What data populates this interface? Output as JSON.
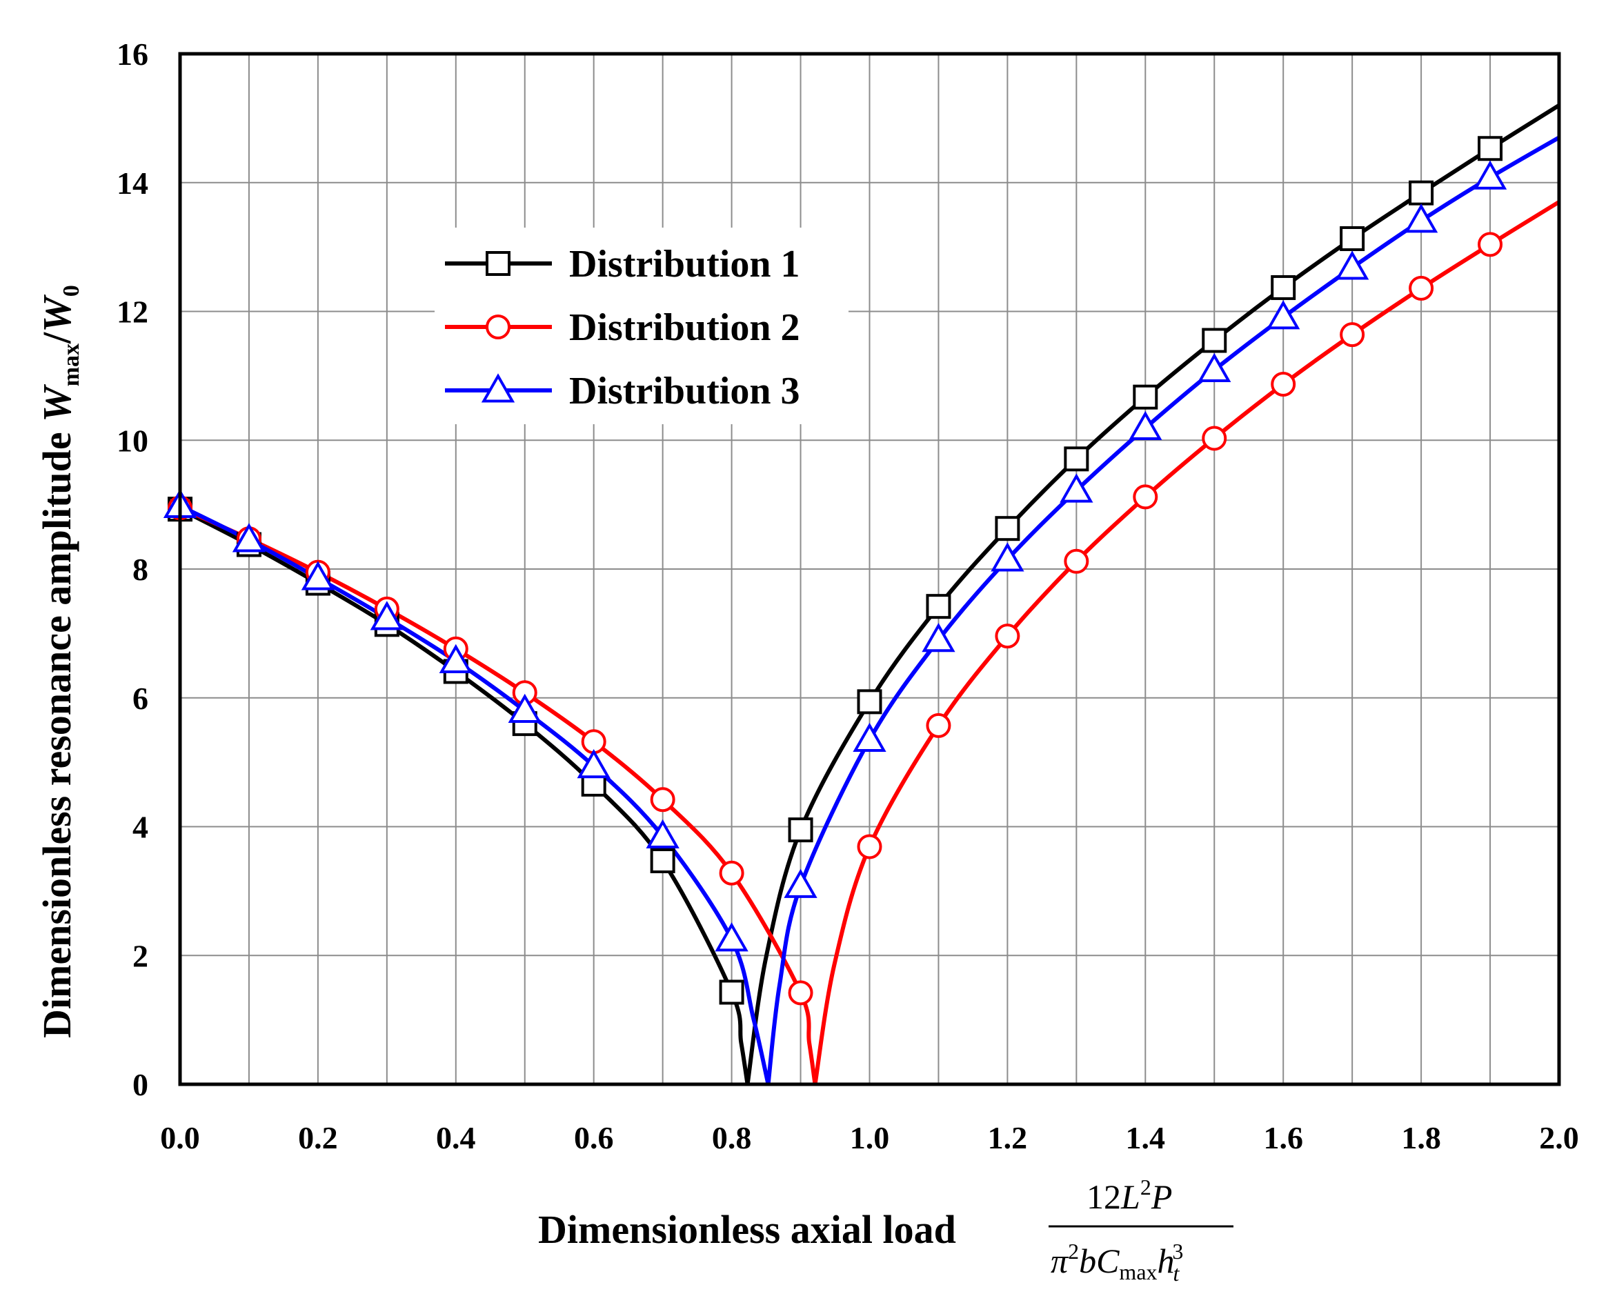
{
  "chart_data": {
    "type": "line",
    "title": "",
    "xlabel": "Dimensionless axial load",
    "xlabel_fraction": {
      "numerator": {
        "coef": "12",
        "L": "L",
        "L_exp": "2",
        "P": "P"
      },
      "denominator": {
        "pi": "π",
        "pi_exp": "2",
        "b": "b",
        "C": "C",
        "C_sub": "max",
        "h": "h",
        "h_sub": "t",
        "h_exp": "3"
      }
    },
    "ylabel": {
      "text": "Dimensionless resonance amplitude ",
      "W": "W",
      "W_sub": "max",
      "slash": "/",
      "W0": "W",
      "W0_sub": "0"
    },
    "xlim": [
      0,
      2.0
    ],
    "ylim": [
      0,
      16
    ],
    "x_ticks": [
      0.0,
      0.2,
      0.4,
      0.6,
      0.8,
      1.0,
      1.2,
      1.4,
      1.6,
      1.8,
      2.0
    ],
    "x_tick_labels": [
      "0.0",
      "0.2",
      "0.4",
      "0.6",
      "0.8",
      "1.0",
      "1.2",
      "1.4",
      "1.6",
      "1.8",
      "2.0"
    ],
    "y_ticks": [
      0,
      2,
      4,
      6,
      8,
      10,
      12,
      14,
      16
    ],
    "y_tick_labels": [
      "0",
      "2",
      "4",
      "6",
      "8",
      "10",
      "12",
      "14",
      "16"
    ],
    "grid": true,
    "legend_position": "upper-left-center",
    "series": [
      {
        "name": "Distribution 1",
        "color": "#000000",
        "marker": "square",
        "critical_load": 0.823,
        "x": [
          0.0,
          0.1,
          0.2,
          0.3,
          0.4,
          0.5,
          0.6,
          0.7,
          0.8,
          0.9,
          1.0,
          1.1,
          1.2,
          1.3,
          1.4,
          1.5,
          1.6,
          1.7,
          1.8,
          1.9
        ],
        "values": [
          8.93,
          8.38,
          7.78,
          7.14,
          6.41,
          5.6,
          4.66,
          3.47,
          1.43,
          3.95,
          5.94,
          7.42,
          8.63,
          9.71,
          10.67,
          11.55,
          12.37,
          13.13,
          13.84,
          14.53
        ],
        "end_point": [
          2.0,
          15.2
        ]
      },
      {
        "name": "Distribution 2",
        "color": "#ff0000",
        "marker": "circle",
        "critical_load": 0.921,
        "x": [
          0.0,
          0.1,
          0.2,
          0.3,
          0.4,
          0.5,
          0.6,
          0.7,
          0.8,
          0.9,
          1.0,
          1.1,
          1.2,
          1.3,
          1.4,
          1.5,
          1.6,
          1.7,
          1.8,
          1.9
        ],
        "values": [
          8.95,
          8.47,
          7.95,
          7.38,
          6.76,
          6.08,
          5.32,
          4.42,
          3.28,
          1.42,
          3.69,
          5.57,
          6.96,
          8.12,
          9.12,
          10.03,
          10.87,
          11.64,
          12.36,
          13.04
        ],
        "end_point": [
          2.0,
          13.7
        ]
      },
      {
        "name": "Distribution 3",
        "color": "#0000ff",
        "marker": "triangle",
        "critical_load": 0.853,
        "x": [
          0.0,
          0.1,
          0.2,
          0.3,
          0.4,
          0.5,
          0.6,
          0.7,
          0.8,
          0.9,
          1.0,
          1.1,
          1.2,
          1.3,
          1.4,
          1.5,
          1.6,
          1.7,
          1.8,
          1.9
        ],
        "values": [
          8.98,
          8.45,
          7.86,
          7.24,
          6.57,
          5.8,
          4.94,
          3.85,
          2.25,
          3.08,
          5.35,
          6.9,
          8.15,
          9.22,
          10.19,
          11.09,
          11.91,
          12.68,
          13.41,
          14.08
        ],
        "end_point": [
          2.0,
          14.7
        ]
      }
    ]
  }
}
